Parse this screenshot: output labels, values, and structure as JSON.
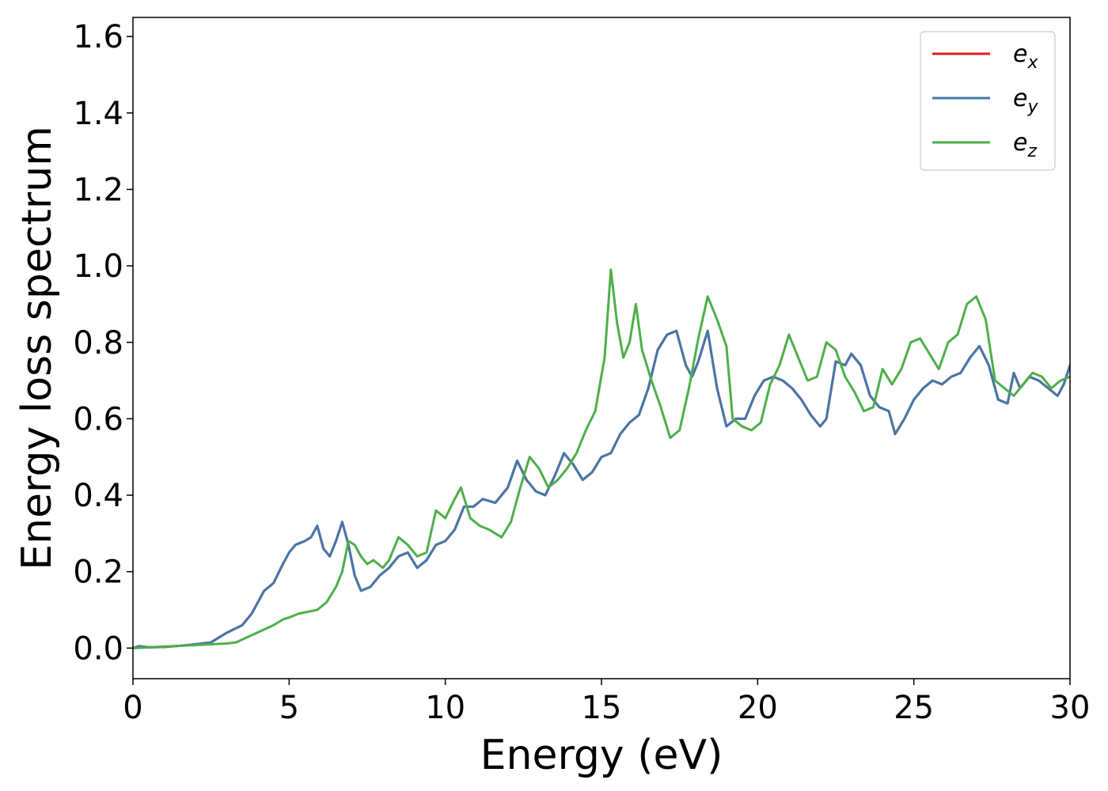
{
  "chart_data": {
    "type": "line",
    "title": "",
    "xlabel": "Energy (eV)",
    "ylabel": "Energy loss spectrum",
    "xlim": [
      0,
      30
    ],
    "ylim": [
      -0.08,
      1.65
    ],
    "x_ticks": [
      0,
      5,
      10,
      15,
      20,
      25,
      30
    ],
    "x_tick_labels": [
      "0",
      "5",
      "10",
      "15",
      "20",
      "25",
      "30"
    ],
    "y_ticks": [
      0.0,
      0.2,
      0.4,
      0.6,
      0.8,
      1.0,
      1.2,
      1.4,
      1.6
    ],
    "y_tick_labels": [
      "0.0",
      "0.2",
      "0.4",
      "0.6",
      "0.8",
      "1.0",
      "1.2",
      "1.4",
      "1.6"
    ],
    "grid": false,
    "legend_position": "top-right",
    "series": [
      {
        "name": "e",
        "subscript": "x",
        "color": "#e41a1c",
        "x": [
          0,
          0.2,
          0.5,
          1,
          1.5,
          2,
          2.5,
          3,
          3.5,
          3.8,
          4.2,
          4.5,
          4.8,
          5,
          5.2,
          5.5,
          5.7,
          5.9,
          6.1,
          6.3,
          6.5,
          6.7,
          6.9,
          7.1,
          7.3,
          7.6,
          7.9,
          8.2,
          8.5,
          8.8,
          9.1,
          9.4,
          9.7,
          10,
          10.3,
          10.6,
          10.9,
          11.2,
          11.6,
          12,
          12.3,
          12.6,
          12.9,
          13.2,
          13.5,
          13.8,
          14.1,
          14.4,
          14.7,
          15,
          15.3,
          15.6,
          15.9,
          16.2,
          16.5,
          16.8,
          17.1,
          17.4,
          17.7,
          17.9,
          18.1,
          18.4,
          18.7,
          19,
          19.3,
          19.6,
          19.9,
          20.2,
          20.5,
          20.8,
          21.1,
          21.4,
          21.7,
          22,
          22.2,
          22.5,
          22.8,
          23,
          23.3,
          23.6,
          23.9,
          24.2,
          24.4,
          24.7,
          25,
          25.3,
          25.6,
          25.9,
          26.2,
          26.5,
          26.8,
          27.1,
          27.4,
          27.7,
          28,
          28.2,
          28.4,
          28.7,
          29,
          29.3,
          29.6,
          29.8,
          30
        ],
        "values": [
          0,
          0.005,
          0.002,
          0.003,
          0.006,
          0.01,
          0.015,
          0.04,
          0.06,
          0.09,
          0.15,
          0.17,
          0.22,
          0.25,
          0.27,
          0.28,
          0.29,
          0.32,
          0.26,
          0.24,
          0.28,
          0.33,
          0.27,
          0.19,
          0.15,
          0.16,
          0.19,
          0.21,
          0.24,
          0.25,
          0.21,
          0.23,
          0.27,
          0.28,
          0.31,
          0.37,
          0.37,
          0.39,
          0.38,
          0.42,
          0.49,
          0.44,
          0.41,
          0.4,
          0.45,
          0.51,
          0.48,
          0.44,
          0.46,
          0.5,
          0.51,
          0.56,
          0.59,
          0.61,
          0.68,
          0.78,
          0.82,
          0.83,
          0.74,
          0.71,
          0.75,
          0.83,
          0.68,
          0.58,
          0.6,
          0.6,
          0.66,
          0.7,
          0.71,
          0.7,
          0.68,
          0.65,
          0.61,
          0.58,
          0.6,
          0.75,
          0.74,
          0.77,
          0.74,
          0.66,
          0.63,
          0.62,
          0.56,
          0.6,
          0.65,
          0.68,
          0.7,
          0.69,
          0.71,
          0.72,
          0.76,
          0.79,
          0.74,
          0.65,
          0.64,
          0.72,
          0.68,
          0.71,
          0.7,
          0.68,
          0.66,
          0.69,
          0.74
        ],
        "visible_note": ""
      },
      {
        "name": "e",
        "subscript": "y",
        "color": "#4477aa",
        "x": [
          0,
          0.2,
          0.5,
          1,
          1.5,
          2,
          2.5,
          3,
          3.5,
          3.8,
          4.2,
          4.5,
          4.8,
          5,
          5.2,
          5.5,
          5.7,
          5.9,
          6.1,
          6.3,
          6.5,
          6.7,
          6.9,
          7.1,
          7.3,
          7.6,
          7.9,
          8.2,
          8.5,
          8.8,
          9.1,
          9.4,
          9.7,
          10,
          10.3,
          10.6,
          10.9,
          11.2,
          11.6,
          12,
          12.3,
          12.6,
          12.9,
          13.2,
          13.5,
          13.8,
          14.1,
          14.4,
          14.7,
          15,
          15.3,
          15.6,
          15.9,
          16.2,
          16.5,
          16.8,
          17.1,
          17.4,
          17.7,
          17.9,
          18.1,
          18.4,
          18.7,
          19,
          19.3,
          19.6,
          19.9,
          20.2,
          20.5,
          20.8,
          21.1,
          21.4,
          21.7,
          22,
          22.2,
          22.5,
          22.8,
          23,
          23.3,
          23.6,
          23.9,
          24.2,
          24.4,
          24.7,
          25,
          25.3,
          25.6,
          25.9,
          26.2,
          26.5,
          26.8,
          27.1,
          27.4,
          27.7,
          28,
          28.2,
          28.4,
          28.7,
          29,
          29.3,
          29.6,
          29.8,
          30
        ],
        "values": [
          0,
          0.005,
          0.002,
          0.003,
          0.006,
          0.01,
          0.015,
          0.04,
          0.06,
          0.09,
          0.15,
          0.17,
          0.22,
          0.25,
          0.27,
          0.28,
          0.29,
          0.32,
          0.26,
          0.24,
          0.28,
          0.33,
          0.27,
          0.19,
          0.15,
          0.16,
          0.19,
          0.21,
          0.24,
          0.25,
          0.21,
          0.23,
          0.27,
          0.28,
          0.31,
          0.37,
          0.37,
          0.39,
          0.38,
          0.42,
          0.49,
          0.44,
          0.41,
          0.4,
          0.45,
          0.51,
          0.48,
          0.44,
          0.46,
          0.5,
          0.51,
          0.56,
          0.59,
          0.61,
          0.68,
          0.78,
          0.82,
          0.83,
          0.74,
          0.71,
          0.75,
          0.83,
          0.68,
          0.58,
          0.6,
          0.6,
          0.66,
          0.7,
          0.71,
          0.7,
          0.68,
          0.65,
          0.61,
          0.58,
          0.6,
          0.75,
          0.74,
          0.77,
          0.74,
          0.66,
          0.63,
          0.62,
          0.56,
          0.6,
          0.65,
          0.68,
          0.7,
          0.69,
          0.71,
          0.72,
          0.76,
          0.79,
          0.74,
          0.65,
          0.64,
          0.72,
          0.68,
          0.71,
          0.7,
          0.68,
          0.66,
          0.69,
          0.74
        ]
      },
      {
        "name": "e",
        "subscript": "z",
        "color": "#4daf4a",
        "x": [
          0,
          0.5,
          1,
          1.5,
          2,
          2.5,
          3,
          3.3,
          3.7,
          4.1,
          4.5,
          4.8,
          5,
          5.3,
          5.6,
          5.9,
          6.2,
          6.5,
          6.7,
          6.9,
          7.1,
          7.3,
          7.5,
          7.7,
          8,
          8.2,
          8.5,
          8.8,
          9.1,
          9.4,
          9.7,
          10,
          10.3,
          10.5,
          10.8,
          11.1,
          11.4,
          11.8,
          12.1,
          12.4,
          12.7,
          13,
          13.3,
          13.6,
          13.9,
          14.2,
          14.5,
          14.8,
          15.1,
          15.3,
          15.5,
          15.7,
          15.9,
          16.1,
          16.3,
          16.6,
          16.9,
          17.2,
          17.5,
          17.8,
          18.1,
          18.4,
          18.7,
          19,
          19.2,
          19.5,
          19.8,
          20.1,
          20.4,
          20.7,
          21,
          21.3,
          21.6,
          21.9,
          22.2,
          22.5,
          22.8,
          23.1,
          23.4,
          23.7,
          24,
          24.3,
          24.6,
          24.9,
          25.2,
          25.5,
          25.8,
          26.1,
          26.4,
          26.7,
          27,
          27.3,
          27.6,
          27.9,
          28.2,
          28.5,
          28.8,
          29.1,
          29.4,
          29.7,
          30
        ],
        "values": [
          0,
          0.002,
          0.004,
          0.006,
          0.008,
          0.01,
          0.012,
          0.015,
          0.03,
          0.045,
          0.06,
          0.075,
          0.08,
          0.09,
          0.095,
          0.1,
          0.12,
          0.16,
          0.2,
          0.28,
          0.27,
          0.24,
          0.22,
          0.23,
          0.21,
          0.23,
          0.29,
          0.27,
          0.24,
          0.25,
          0.36,
          0.34,
          0.39,
          0.42,
          0.34,
          0.32,
          0.31,
          0.29,
          0.33,
          0.42,
          0.5,
          0.47,
          0.42,
          0.44,
          0.47,
          0.51,
          0.57,
          0.62,
          0.76,
          0.99,
          0.85,
          0.76,
          0.8,
          0.9,
          0.78,
          0.7,
          0.63,
          0.55,
          0.57,
          0.68,
          0.81,
          0.92,
          0.86,
          0.79,
          0.6,
          0.58,
          0.57,
          0.59,
          0.69,
          0.74,
          0.82,
          0.76,
          0.7,
          0.71,
          0.8,
          0.78,
          0.71,
          0.67,
          0.62,
          0.63,
          0.73,
          0.69,
          0.73,
          0.8,
          0.81,
          0.77,
          0.73,
          0.8,
          0.82,
          0.9,
          0.92,
          0.86,
          0.7,
          0.68,
          0.66,
          0.69,
          0.72,
          0.71,
          0.68,
          0.7,
          0.71
        ]
      }
    ]
  }
}
